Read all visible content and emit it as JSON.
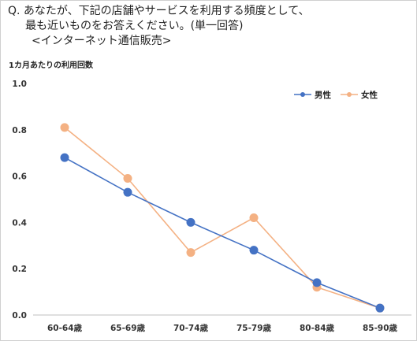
{
  "question": {
    "line1": "Q. あなたが、下記の店舗やサービスを利用する頻度として、",
    "line2": "最も近いものをお答えください。(単一回答)",
    "line3": "<インターネット通信販売>"
  },
  "chart_data": {
    "type": "line",
    "ylabel": "1カ月あたりの利用回数",
    "xlabel": "",
    "categories": [
      "60-64歳",
      "65-69歳",
      "70-74歳",
      "75-79歳",
      "80-84歳",
      "85-90歳"
    ],
    "ylim": [
      0,
      1.0
    ],
    "yticks": [
      "0.0",
      "0.2",
      "0.4",
      "0.6",
      "0.8",
      "1.0"
    ],
    "grid": false,
    "legend_position": "top-right",
    "series": [
      {
        "name": "男性",
        "color": "#4472c4",
        "values": [
          0.68,
          0.53,
          0.4,
          0.28,
          0.14,
          0.03
        ]
      },
      {
        "name": "女性",
        "color": "#f4b183",
        "values": [
          0.81,
          0.59,
          0.27,
          0.42,
          0.12,
          0.03
        ]
      }
    ]
  }
}
